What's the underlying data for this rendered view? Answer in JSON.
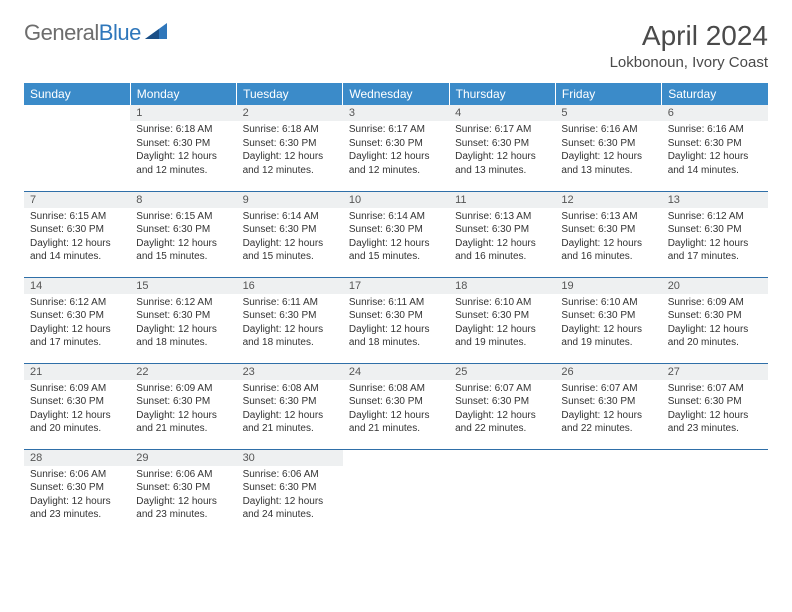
{
  "logo": {
    "text1": "General",
    "text2": "Blue"
  },
  "title": "April 2024",
  "location": "Lokbonoun, Ivory Coast",
  "colors": {
    "header_bg": "#3b8bc9",
    "header_text": "#ffffff",
    "daynum_bg": "#eef0f1",
    "row_border": "#2f6fa8",
    "logo_gray": "#6d6d6d",
    "logo_blue": "#2f77bb"
  },
  "weekdays": [
    "Sunday",
    "Monday",
    "Tuesday",
    "Wednesday",
    "Thursday",
    "Friday",
    "Saturday"
  ],
  "weeks": [
    [
      null,
      {
        "n": "1",
        "sr": "Sunrise: 6:18 AM",
        "ss": "Sunset: 6:30 PM",
        "dl": "Daylight: 12 hours and 12 minutes."
      },
      {
        "n": "2",
        "sr": "Sunrise: 6:18 AM",
        "ss": "Sunset: 6:30 PM",
        "dl": "Daylight: 12 hours and 12 minutes."
      },
      {
        "n": "3",
        "sr": "Sunrise: 6:17 AM",
        "ss": "Sunset: 6:30 PM",
        "dl": "Daylight: 12 hours and 12 minutes."
      },
      {
        "n": "4",
        "sr": "Sunrise: 6:17 AM",
        "ss": "Sunset: 6:30 PM",
        "dl": "Daylight: 12 hours and 13 minutes."
      },
      {
        "n": "5",
        "sr": "Sunrise: 6:16 AM",
        "ss": "Sunset: 6:30 PM",
        "dl": "Daylight: 12 hours and 13 minutes."
      },
      {
        "n": "6",
        "sr": "Sunrise: 6:16 AM",
        "ss": "Sunset: 6:30 PM",
        "dl": "Daylight: 12 hours and 14 minutes."
      }
    ],
    [
      {
        "n": "7",
        "sr": "Sunrise: 6:15 AM",
        "ss": "Sunset: 6:30 PM",
        "dl": "Daylight: 12 hours and 14 minutes."
      },
      {
        "n": "8",
        "sr": "Sunrise: 6:15 AM",
        "ss": "Sunset: 6:30 PM",
        "dl": "Daylight: 12 hours and 15 minutes."
      },
      {
        "n": "9",
        "sr": "Sunrise: 6:14 AM",
        "ss": "Sunset: 6:30 PM",
        "dl": "Daylight: 12 hours and 15 minutes."
      },
      {
        "n": "10",
        "sr": "Sunrise: 6:14 AM",
        "ss": "Sunset: 6:30 PM",
        "dl": "Daylight: 12 hours and 15 minutes."
      },
      {
        "n": "11",
        "sr": "Sunrise: 6:13 AM",
        "ss": "Sunset: 6:30 PM",
        "dl": "Daylight: 12 hours and 16 minutes."
      },
      {
        "n": "12",
        "sr": "Sunrise: 6:13 AM",
        "ss": "Sunset: 6:30 PM",
        "dl": "Daylight: 12 hours and 16 minutes."
      },
      {
        "n": "13",
        "sr": "Sunrise: 6:12 AM",
        "ss": "Sunset: 6:30 PM",
        "dl": "Daylight: 12 hours and 17 minutes."
      }
    ],
    [
      {
        "n": "14",
        "sr": "Sunrise: 6:12 AM",
        "ss": "Sunset: 6:30 PM",
        "dl": "Daylight: 12 hours and 17 minutes."
      },
      {
        "n": "15",
        "sr": "Sunrise: 6:12 AM",
        "ss": "Sunset: 6:30 PM",
        "dl": "Daylight: 12 hours and 18 minutes."
      },
      {
        "n": "16",
        "sr": "Sunrise: 6:11 AM",
        "ss": "Sunset: 6:30 PM",
        "dl": "Daylight: 12 hours and 18 minutes."
      },
      {
        "n": "17",
        "sr": "Sunrise: 6:11 AM",
        "ss": "Sunset: 6:30 PM",
        "dl": "Daylight: 12 hours and 18 minutes."
      },
      {
        "n": "18",
        "sr": "Sunrise: 6:10 AM",
        "ss": "Sunset: 6:30 PM",
        "dl": "Daylight: 12 hours and 19 minutes."
      },
      {
        "n": "19",
        "sr": "Sunrise: 6:10 AM",
        "ss": "Sunset: 6:30 PM",
        "dl": "Daylight: 12 hours and 19 minutes."
      },
      {
        "n": "20",
        "sr": "Sunrise: 6:09 AM",
        "ss": "Sunset: 6:30 PM",
        "dl": "Daylight: 12 hours and 20 minutes."
      }
    ],
    [
      {
        "n": "21",
        "sr": "Sunrise: 6:09 AM",
        "ss": "Sunset: 6:30 PM",
        "dl": "Daylight: 12 hours and 20 minutes."
      },
      {
        "n": "22",
        "sr": "Sunrise: 6:09 AM",
        "ss": "Sunset: 6:30 PM",
        "dl": "Daylight: 12 hours and 21 minutes."
      },
      {
        "n": "23",
        "sr": "Sunrise: 6:08 AM",
        "ss": "Sunset: 6:30 PM",
        "dl": "Daylight: 12 hours and 21 minutes."
      },
      {
        "n": "24",
        "sr": "Sunrise: 6:08 AM",
        "ss": "Sunset: 6:30 PM",
        "dl": "Daylight: 12 hours and 21 minutes."
      },
      {
        "n": "25",
        "sr": "Sunrise: 6:07 AM",
        "ss": "Sunset: 6:30 PM",
        "dl": "Daylight: 12 hours and 22 minutes."
      },
      {
        "n": "26",
        "sr": "Sunrise: 6:07 AM",
        "ss": "Sunset: 6:30 PM",
        "dl": "Daylight: 12 hours and 22 minutes."
      },
      {
        "n": "27",
        "sr": "Sunrise: 6:07 AM",
        "ss": "Sunset: 6:30 PM",
        "dl": "Daylight: 12 hours and 23 minutes."
      }
    ],
    [
      {
        "n": "28",
        "sr": "Sunrise: 6:06 AM",
        "ss": "Sunset: 6:30 PM",
        "dl": "Daylight: 12 hours and 23 minutes."
      },
      {
        "n": "29",
        "sr": "Sunrise: 6:06 AM",
        "ss": "Sunset: 6:30 PM",
        "dl": "Daylight: 12 hours and 23 minutes."
      },
      {
        "n": "30",
        "sr": "Sunrise: 6:06 AM",
        "ss": "Sunset: 6:30 PM",
        "dl": "Daylight: 12 hours and 24 minutes."
      },
      null,
      null,
      null,
      null
    ]
  ]
}
